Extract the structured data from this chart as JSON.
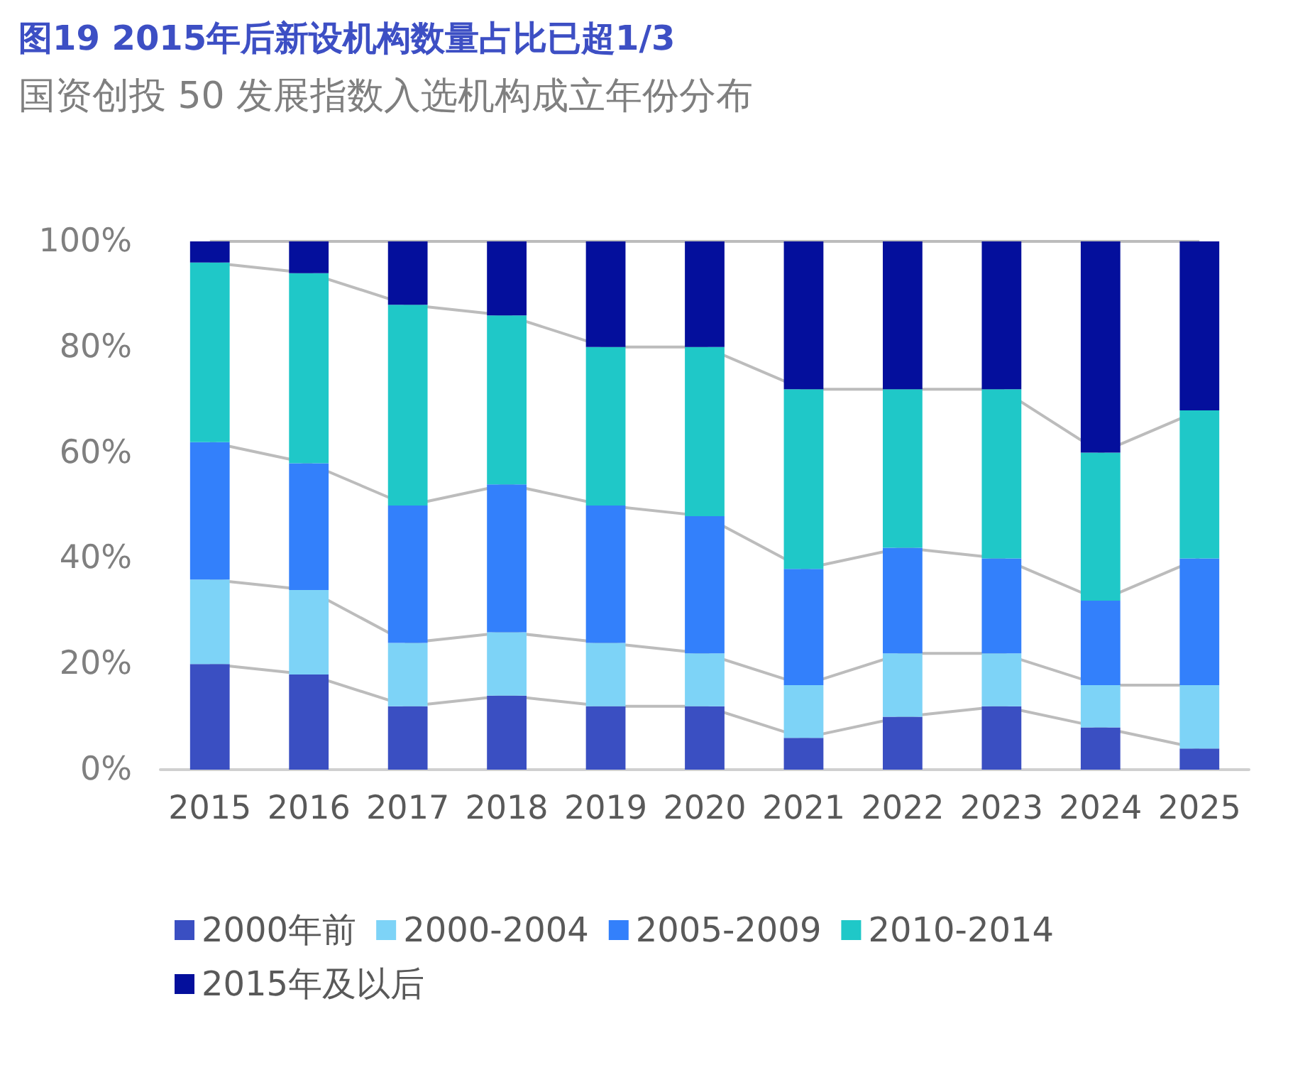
{
  "chart_data": {
    "type": "bar",
    "stacked": true,
    "title": "图19 2015年后新设机构数量占比已超1/3",
    "subtitle": "国资创投 50 发展指数入选机构成立年份分布",
    "categories": [
      "2015",
      "2016",
      "2017",
      "2018",
      "2019",
      "2020",
      "2021",
      "2022",
      "2023",
      "2024",
      "2025"
    ],
    "series": [
      {
        "name": "2000年前",
        "color": "#3a4fc2",
        "values": [
          20,
          18,
          12,
          14,
          12,
          12,
          6,
          10,
          12,
          8,
          4
        ]
      },
      {
        "name": "2000-2004",
        "color": "#7dd3f7",
        "values": [
          16,
          16,
          12,
          12,
          12,
          10,
          10,
          12,
          10,
          8,
          12
        ]
      },
      {
        "name": "2005-2009",
        "color": "#3380fb",
        "values": [
          26,
          24,
          26,
          28,
          26,
          26,
          22,
          20,
          18,
          16,
          24
        ]
      },
      {
        "name": "2010-2014",
        "color": "#1fc8c8",
        "values": [
          34,
          36,
          38,
          32,
          30,
          32,
          34,
          30,
          32,
          28,
          28
        ]
      },
      {
        "name": "2015年及以后",
        "color": "#040f9c",
        "values": [
          4,
          6,
          12,
          14,
          20,
          20,
          28,
          28,
          28,
          40,
          32
        ]
      }
    ],
    "ylim": [
      0,
      100
    ],
    "yticks": [
      {
        "value": 0,
        "label": "0%"
      },
      {
        "value": 20,
        "label": "20%"
      },
      {
        "value": 40,
        "label": "40%"
      },
      {
        "value": 60,
        "label": "60%"
      },
      {
        "value": 80,
        "label": "80%"
      },
      {
        "value": 100,
        "label": "100%"
      }
    ],
    "grid": false,
    "legend": "bottom"
  }
}
